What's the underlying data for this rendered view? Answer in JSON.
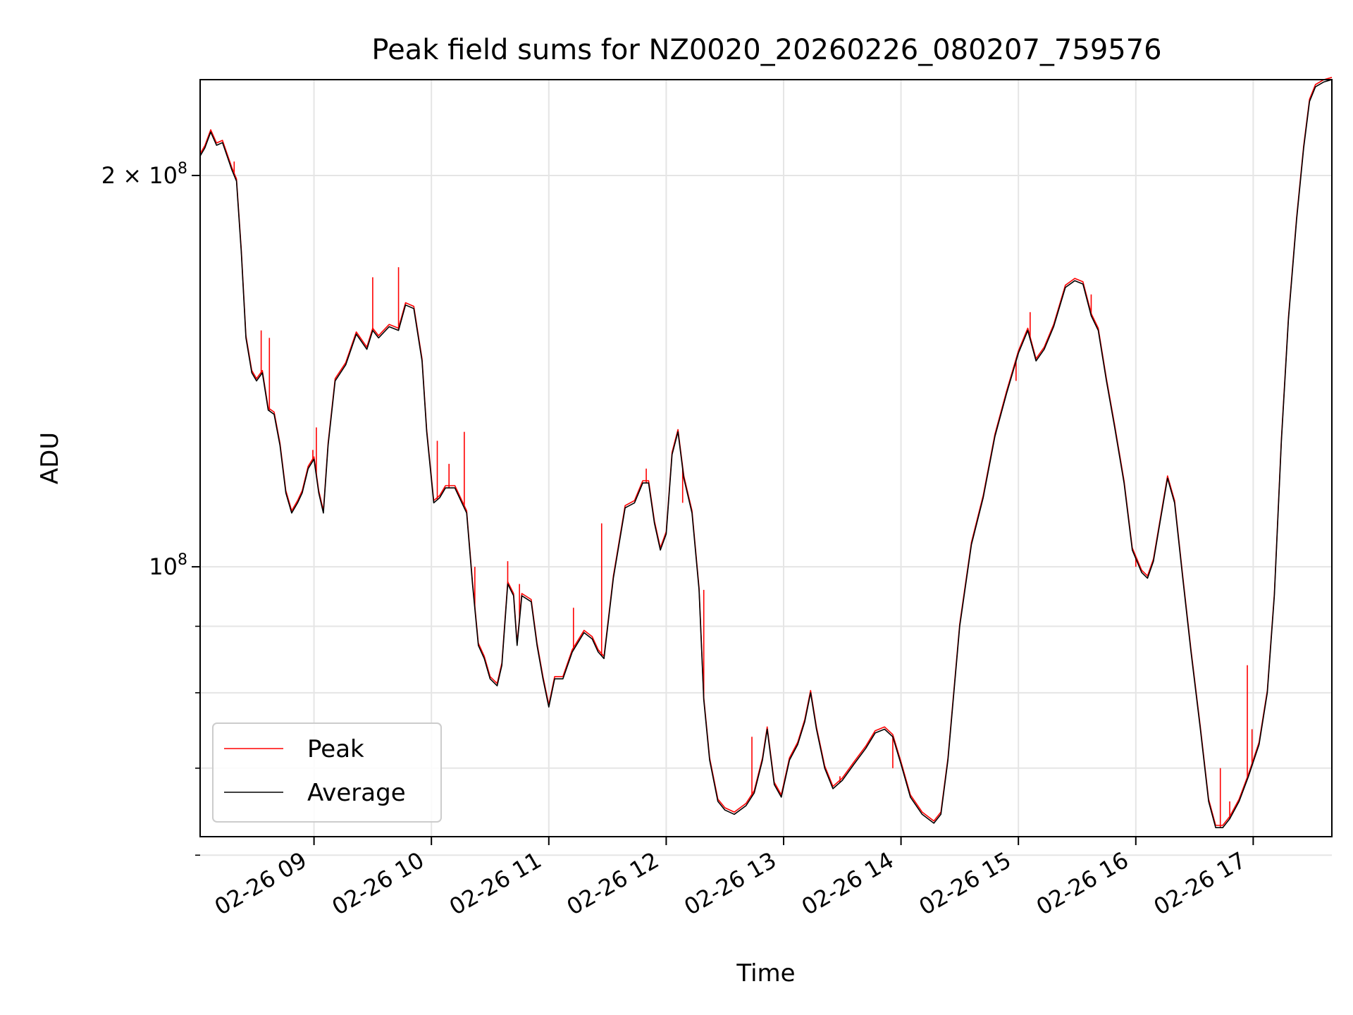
{
  "chart_data": {
    "type": "line",
    "title": "Peak field sums for NZ0020_20260226_080207_759576",
    "xlabel": "Time",
    "ylabel": "ADU",
    "y_scale": "log",
    "ylim": [
      62000000,
      237000000
    ],
    "xlim_hours": [
      8.03,
      17.67
    ],
    "grid": true,
    "legend_position": "lower-left",
    "x_ticks": [
      {
        "value": 9,
        "label": "02-26 09"
      },
      {
        "value": 10,
        "label": "02-26 10"
      },
      {
        "value": 11,
        "label": "02-26 11"
      },
      {
        "value": 12,
        "label": "02-26 12"
      },
      {
        "value": 13,
        "label": "02-26 13"
      },
      {
        "value": 14,
        "label": "02-26 14"
      },
      {
        "value": 15,
        "label": "02-26 15"
      },
      {
        "value": 16,
        "label": "02-26 16"
      },
      {
        "value": 17,
        "label": "02-26 17"
      }
    ],
    "y_major_ticks": [
      {
        "value": 100000000,
        "base": "10",
        "exp": "8",
        "mult": ""
      },
      {
        "value": 200000000,
        "base": "10",
        "exp": "8",
        "mult": "2 × "
      }
    ],
    "y_minor_ticks": [
      60000000,
      70000000,
      80000000,
      90000000
    ],
    "series": [
      {
        "name": "Peak",
        "color": "#ff0000",
        "spikes": [
          [
            8.32,
            205000000
          ],
          [
            8.55,
            152000000
          ],
          [
            8.62,
            150000000
          ],
          [
            8.99,
            123000000
          ],
          [
            9.02,
            128000000
          ],
          [
            9.5,
            167000000
          ],
          [
            9.72,
            170000000
          ],
          [
            10.05,
            125000000
          ],
          [
            10.15,
            120000000
          ],
          [
            10.28,
            127000000
          ],
          [
            10.37,
            100000000
          ],
          [
            10.65,
            101000000
          ],
          [
            10.75,
            97000000
          ],
          [
            11.21,
            93000000
          ],
          [
            11.45,
            108000000
          ],
          [
            11.83,
            119000000
          ],
          [
            12.14,
            112000000
          ],
          [
            12.32,
            96000000
          ],
          [
            12.73,
            74000000
          ],
          [
            13.48,
            69000000
          ],
          [
            13.93,
            70000000
          ],
          [
            14.98,
            139000000
          ],
          [
            15.1,
            157000000
          ],
          [
            15.62,
            162000000
          ],
          [
            16.0,
            100000000
          ],
          [
            16.72,
            70000000
          ],
          [
            16.8,
            66000000
          ],
          [
            16.88,
            66000000
          ],
          [
            16.95,
            84000000
          ],
          [
            16.99,
            75000000
          ],
          [
            17.3,
            155000000
          ]
        ]
      },
      {
        "name": "Average",
        "color": "#000000",
        "points": [
          [
            8.03,
            207000000
          ],
          [
            8.07,
            210000000
          ],
          [
            8.12,
            216000000
          ],
          [
            8.17,
            211000000
          ],
          [
            8.22,
            212000000
          ],
          [
            8.26,
            207000000
          ],
          [
            8.3,
            202000000
          ],
          [
            8.34,
            198000000
          ],
          [
            8.38,
            175000000
          ],
          [
            8.42,
            150000000
          ],
          [
            8.47,
            141000000
          ],
          [
            8.51,
            139000000
          ],
          [
            8.56,
            141000000
          ],
          [
            8.61,
            132000000
          ],
          [
            8.66,
            131000000
          ],
          [
            8.71,
            124000000
          ],
          [
            8.76,
            114000000
          ],
          [
            8.81,
            110000000
          ],
          [
            8.86,
            112000000
          ],
          [
            8.9,
            114000000
          ],
          [
            8.95,
            119000000
          ],
          [
            9.0,
            121000000
          ],
          [
            9.04,
            114000000
          ],
          [
            9.08,
            110000000
          ],
          [
            9.12,
            124000000
          ],
          [
            9.18,
            139000000
          ],
          [
            9.27,
            143000000
          ],
          [
            9.36,
            151000000
          ],
          [
            9.45,
            147000000
          ],
          [
            9.5,
            152000000
          ],
          [
            9.55,
            150000000
          ],
          [
            9.64,
            153000000
          ],
          [
            9.72,
            152000000
          ],
          [
            9.78,
            159000000
          ],
          [
            9.85,
            158000000
          ],
          [
            9.92,
            144000000
          ],
          [
            9.96,
            127000000
          ],
          [
            10.02,
            112000000
          ],
          [
            10.07,
            113000000
          ],
          [
            10.12,
            115000000
          ],
          [
            10.2,
            115000000
          ],
          [
            10.3,
            110000000
          ],
          [
            10.35,
            97000000
          ],
          [
            10.4,
            87000000
          ],
          [
            10.45,
            85000000
          ],
          [
            10.5,
            82000000
          ],
          [
            10.56,
            81000000
          ],
          [
            10.6,
            84000000
          ],
          [
            10.65,
            97000000
          ],
          [
            10.7,
            95000000
          ],
          [
            10.73,
            87000000
          ],
          [
            10.77,
            95000000
          ],
          [
            10.85,
            94000000
          ],
          [
            10.9,
            87000000
          ],
          [
            10.95,
            82000000
          ],
          [
            11.0,
            78000000
          ],
          [
            11.05,
            82000000
          ],
          [
            11.12,
            82000000
          ],
          [
            11.2,
            86000000
          ],
          [
            11.3,
            89000000
          ],
          [
            11.37,
            88000000
          ],
          [
            11.42,
            86000000
          ],
          [
            11.47,
            85000000
          ],
          [
            11.55,
            98000000
          ],
          [
            11.65,
            111000000
          ],
          [
            11.73,
            112000000
          ],
          [
            11.8,
            116000000
          ],
          [
            11.85,
            116000000
          ],
          [
            11.9,
            108000000
          ],
          [
            11.95,
            103000000
          ],
          [
            12.0,
            106000000
          ],
          [
            12.05,
            122000000
          ],
          [
            12.1,
            127000000
          ],
          [
            12.15,
            117000000
          ],
          [
            12.22,
            110000000
          ],
          [
            12.28,
            96000000
          ],
          [
            12.32,
            79000000
          ],
          [
            12.37,
            71000000
          ],
          [
            12.44,
            66000000
          ],
          [
            12.5,
            65000000
          ],
          [
            12.58,
            64500000
          ],
          [
            12.68,
            65500000
          ],
          [
            12.75,
            67000000
          ],
          [
            12.82,
            71000000
          ],
          [
            12.86,
            75000000
          ],
          [
            12.92,
            68000000
          ],
          [
            12.98,
            66500000
          ],
          [
            13.05,
            71000000
          ],
          [
            13.12,
            73000000
          ],
          [
            13.18,
            76000000
          ],
          [
            13.23,
            80000000
          ],
          [
            13.28,
            75000000
          ],
          [
            13.35,
            70000000
          ],
          [
            13.42,
            67500000
          ],
          [
            13.5,
            68500000
          ],
          [
            13.6,
            70500000
          ],
          [
            13.7,
            72500000
          ],
          [
            13.78,
            74500000
          ],
          [
            13.86,
            75000000
          ],
          [
            13.93,
            74000000
          ],
          [
            14.0,
            70500000
          ],
          [
            14.08,
            66500000
          ],
          [
            14.18,
            64500000
          ],
          [
            14.28,
            63500000
          ],
          [
            14.34,
            64500000
          ],
          [
            14.4,
            71000000
          ],
          [
            14.5,
            90000000
          ],
          [
            14.6,
            104000000
          ],
          [
            14.7,
            113000000
          ],
          [
            14.8,
            126000000
          ],
          [
            14.9,
            136000000
          ],
          [
            15.0,
            146000000
          ],
          [
            15.08,
            152000000
          ],
          [
            15.15,
            144000000
          ],
          [
            15.22,
            147000000
          ],
          [
            15.3,
            153000000
          ],
          [
            15.4,
            164000000
          ],
          [
            15.48,
            166000000
          ],
          [
            15.55,
            165000000
          ],
          [
            15.62,
            156000000
          ],
          [
            15.68,
            152000000
          ],
          [
            15.75,
            139000000
          ],
          [
            15.82,
            128000000
          ],
          [
            15.9,
            116000000
          ],
          [
            15.97,
            103000000
          ],
          [
            16.05,
            99000000
          ],
          [
            16.1,
            98000000
          ],
          [
            16.15,
            101000000
          ],
          [
            16.22,
            110000000
          ],
          [
            16.27,
            117000000
          ],
          [
            16.33,
            112000000
          ],
          [
            16.4,
            98000000
          ],
          [
            16.47,
            86000000
          ],
          [
            16.55,
            75000000
          ],
          [
            16.62,
            66000000
          ],
          [
            16.68,
            63000000
          ],
          [
            16.74,
            63000000
          ],
          [
            16.8,
            64000000
          ],
          [
            16.88,
            66000000
          ],
          [
            16.96,
            69000000
          ],
          [
            17.05,
            73000000
          ],
          [
            17.12,
            80000000
          ],
          [
            17.18,
            95000000
          ],
          [
            17.24,
            125000000
          ],
          [
            17.3,
            155000000
          ],
          [
            17.37,
            185000000
          ],
          [
            17.43,
            210000000
          ],
          [
            17.48,
            228000000
          ],
          [
            17.53,
            234000000
          ],
          [
            17.6,
            236000000
          ],
          [
            17.67,
            237000000
          ]
        ]
      }
    ]
  }
}
